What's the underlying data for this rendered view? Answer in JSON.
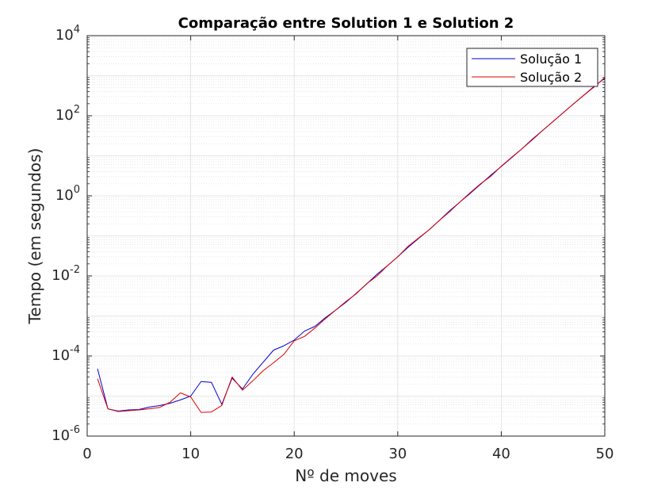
{
  "chart_data": {
    "type": "line",
    "title": "Comparação entre Solution 1 e Solution 2",
    "xlabel": "Nº de moves",
    "ylabel": "Tempo (em segundos)",
    "xlim": [
      0,
      50
    ],
    "ylim": [
      1e-06,
      10000
    ],
    "yscale": "log",
    "grid": true,
    "minor_grid": true,
    "legend_position": "top-right",
    "x_ticks": [
      0,
      10,
      20,
      30,
      40,
      50
    ],
    "y_ticks": [
      {
        "value": 1e-06,
        "base": "10",
        "exp": "-6"
      },
      {
        "value": 0.0001,
        "base": "10",
        "exp": "-4"
      },
      {
        "value": 0.01,
        "base": "10",
        "exp": "-2"
      },
      {
        "value": 1,
        "base": "10",
        "exp": "0"
      },
      {
        "value": 100,
        "base": "10",
        "exp": "2"
      },
      {
        "value": 10000,
        "base": "10",
        "exp": "4"
      }
    ],
    "x": [
      1,
      2,
      3,
      4,
      5,
      6,
      7,
      8,
      9,
      10,
      11,
      12,
      13,
      14,
      15,
      16,
      17,
      18,
      19,
      20,
      21,
      22,
      23,
      24,
      25,
      26,
      27,
      28,
      29,
      30,
      31,
      32,
      33,
      34,
      35,
      36,
      37,
      38,
      39,
      40,
      41,
      42,
      43,
      44,
      45,
      46,
      47,
      48,
      49,
      50
    ],
    "series": [
      {
        "name": "Solução 1",
        "color": "#0000cc",
        "values": [
          4.8e-05,
          4.8e-06,
          4.2e-06,
          4.5e-06,
          4.6e-06,
          5.3e-06,
          5.8e-06,
          6.6e-06,
          8e-06,
          1e-05,
          2.3e-05,
          2.2e-05,
          6.2e-06,
          2.8e-05,
          1.5e-05,
          3.5e-05,
          7e-05,
          0.00014,
          0.00018,
          0.00025,
          0.00042,
          0.00055,
          0.0009,
          0.0014,
          0.0022,
          0.0037,
          0.0063,
          0.011,
          0.018,
          0.03,
          0.052,
          0.086,
          0.14,
          0.24,
          0.42,
          0.7,
          1.15,
          1.95,
          3.3,
          5.4,
          9.0,
          15,
          26,
          43,
          72,
          120,
          200,
          330,
          550,
          860
        ]
      },
      {
        "name": "Solução 2",
        "color": "#dd0000",
        "values": [
          2.7e-05,
          4.8e-06,
          4.1e-06,
          4.3e-06,
          4.5e-06,
          4.8e-06,
          5.2e-06,
          7e-06,
          1.2e-05,
          9.5e-06,
          3.9e-06,
          4e-06,
          5.8e-06,
          3e-05,
          1.4e-05,
          2.4e-05,
          4.3e-05,
          6.8e-05,
          0.00011,
          0.00024,
          0.00031,
          0.0005,
          0.00085,
          0.0014,
          0.0023,
          0.0036,
          0.0064,
          0.01,
          0.018,
          0.03,
          0.055,
          0.088,
          0.14,
          0.24,
          0.4,
          0.7,
          1.2,
          2.0,
          3.1,
          5.5,
          9.2,
          15,
          25,
          43,
          72,
          120,
          200,
          330,
          530,
          900
        ]
      }
    ]
  }
}
